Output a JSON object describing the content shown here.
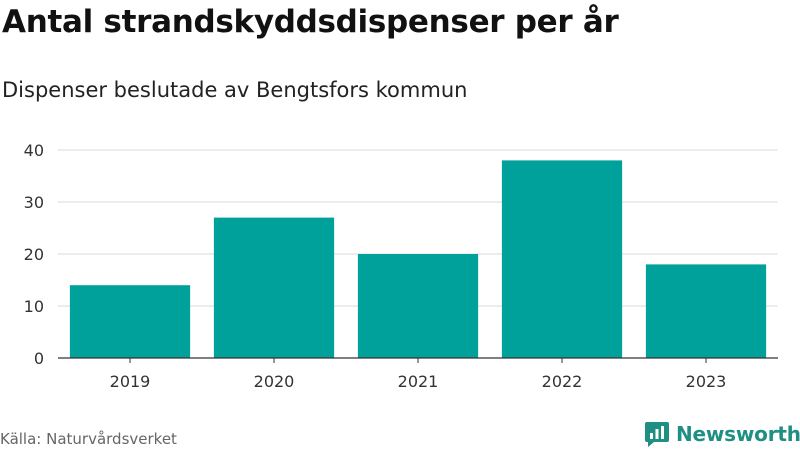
{
  "title": "Antal strandskyddsdispenser per år",
  "subtitle": "Dispenser beslutade av Bengtsfors kommun",
  "source": "Källa: Naturvårdsverket",
  "brand": {
    "name": "Newsworthy",
    "icon": "newsworthy-logo-icon",
    "color": "#1f8f84"
  },
  "chart_data": {
    "type": "bar",
    "categories": [
      "2019",
      "2020",
      "2021",
      "2022",
      "2023"
    ],
    "values": [
      14,
      27,
      20,
      38,
      18
    ],
    "xlabel": "",
    "ylabel": "",
    "ylim": [
      0,
      40
    ],
    "yticks": [
      "0",
      "10",
      "20",
      "30",
      "40"
    ],
    "grid": true,
    "bar_color": "#00a19a"
  }
}
